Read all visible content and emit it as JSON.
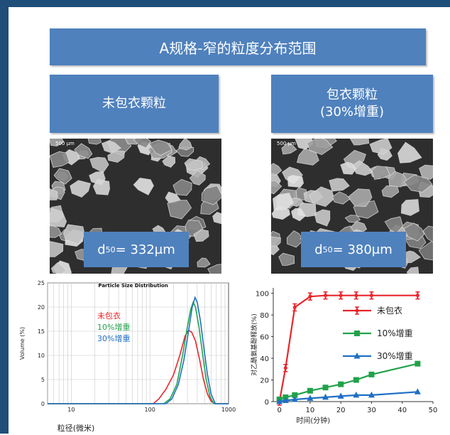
{
  "slide": {
    "title": "A规格-窄的粒度分布范围",
    "left_header": "未包衣颗粒",
    "right_header_line1": "包衣颗粒",
    "right_header_line2": "(30%增重)",
    "left_scale": "500 μm",
    "right_scale": "500 μm",
    "left_d50_prefix": "d",
    "left_d50_sub": "50",
    "left_d50_value": "= 332μm",
    "right_d50_prefix": "d",
    "right_d50_sub": "50",
    "right_d50_value": "= 380μm"
  },
  "colors": {
    "header_blue": "#4f81bd",
    "border_navy": "#1f4e79",
    "uncoated": "#e8262c",
    "coated10": "#21a24a",
    "coated30": "#1f6fc5"
  },
  "chart_data": [
    {
      "type": "line",
      "title": "Particle Size Distribution",
      "xlabel": "粒径(微米)",
      "ylabel": "Volume (%)",
      "xscale": "log",
      "xlim": [
        5,
        1000
      ],
      "ylim": [
        0,
        25
      ],
      "x_ticks": [
        10,
        100,
        1000
      ],
      "y_ticks": [
        0,
        5,
        10,
        15,
        20,
        25
      ],
      "grid": true,
      "legend_placement": "left-middle",
      "series": [
        {
          "name": "未包衣",
          "color": "#e8262c",
          "points": [
            [
              5,
              0
            ],
            [
              110,
              0
            ],
            [
              130,
              1
            ],
            [
              160,
              3
            ],
            [
              200,
              6
            ],
            [
              240,
              10
            ],
            [
              280,
              14
            ],
            [
              310,
              15.2
            ],
            [
              340,
              14.8
            ],
            [
              380,
              13
            ],
            [
              430,
              9
            ],
            [
              480,
              5
            ],
            [
              540,
              2
            ],
            [
              600,
              0.5
            ],
            [
              680,
              0
            ],
            [
              1000,
              0
            ]
          ]
        },
        {
          "name": "10%增重",
          "color": "#21a24a",
          "points": [
            [
              5,
              0
            ],
            [
              150,
              0
            ],
            [
              180,
              1
            ],
            [
              220,
              4
            ],
            [
              260,
              10
            ],
            [
              300,
              16
            ],
            [
              330,
              19.5
            ],
            [
              355,
              21
            ],
            [
              380,
              20
            ],
            [
              420,
              16
            ],
            [
              470,
              10
            ],
            [
              520,
              5
            ],
            [
              580,
              1.5
            ],
            [
              650,
              0
            ],
            [
              1000,
              0
            ]
          ]
        },
        {
          "name": "30%增重",
          "color": "#1f6fc5",
          "points": [
            [
              5,
              0
            ],
            [
              160,
              0
            ],
            [
              190,
              1
            ],
            [
              230,
              4
            ],
            [
              270,
              9
            ],
            [
              310,
              15
            ],
            [
              345,
              20
            ],
            [
              375,
              22
            ],
            [
              400,
              21
            ],
            [
              440,
              17
            ],
            [
              490,
              11
            ],
            [
              540,
              6
            ],
            [
              600,
              2
            ],
            [
              680,
              0
            ],
            [
              1000,
              0
            ]
          ]
        }
      ]
    },
    {
      "type": "line",
      "title": "",
      "xlabel": "时间(分钟)",
      "ylabel": "对乙酰氨基酚释放(%)",
      "xlim": [
        -2,
        50
      ],
      "ylim": [
        0,
        105
      ],
      "x_ticks": [
        0,
        10,
        20,
        30,
        40,
        50
      ],
      "y_ticks": [
        0,
        20,
        40,
        60,
        80,
        100
      ],
      "grid": false,
      "legend_placement": "right-middle",
      "series": [
        {
          "name": "未包衣",
          "color": "#e8262c",
          "marker": "cross",
          "points": [
            [
              0,
              0
            ],
            [
              2,
              31
            ],
            [
              5,
              87
            ],
            [
              10,
              97
            ],
            [
              15,
              98
            ],
            [
              20,
              98
            ],
            [
              25,
              98
            ],
            [
              30,
              98
            ],
            [
              45,
              98
            ]
          ]
        },
        {
          "name": "10%增重",
          "color": "#21a24a",
          "marker": "square",
          "points": [
            [
              0,
              2
            ],
            [
              2,
              4
            ],
            [
              5,
              6
            ],
            [
              10,
              10
            ],
            [
              15,
              13
            ],
            [
              20,
              16
            ],
            [
              25,
              20
            ],
            [
              30,
              25
            ],
            [
              45,
              35
            ]
          ]
        },
        {
          "name": "30%增重",
          "color": "#1f6fc5",
          "marker": "triangle",
          "points": [
            [
              0,
              0
            ],
            [
              2,
              1
            ],
            [
              5,
              2
            ],
            [
              10,
              3
            ],
            [
              15,
              4
            ],
            [
              20,
              5
            ],
            [
              25,
              6
            ],
            [
              30,
              6
            ],
            [
              45,
              9
            ]
          ]
        }
      ]
    }
  ]
}
